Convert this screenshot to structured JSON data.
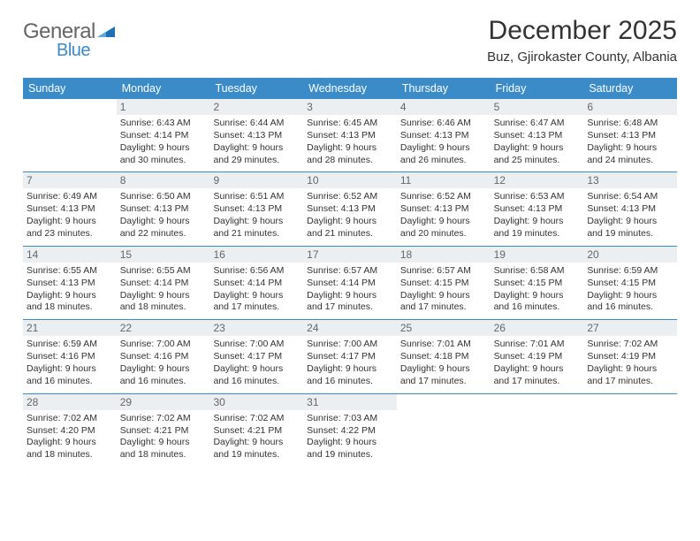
{
  "logo": {
    "part1": "General",
    "part2": "Blue"
  },
  "title": {
    "month": "December 2025",
    "location": "Buz, Gjirokaster County, Albania"
  },
  "colors": {
    "header_bg": "#3b8bc9",
    "header_fg": "#ffffff",
    "day_header_bg": "#eceff1",
    "day_header_fg": "#666666",
    "text": "#333333",
    "rule": "#3b8bc9",
    "page_bg": "#ffffff"
  },
  "week_header": [
    "Sunday",
    "Monday",
    "Tuesday",
    "Wednesday",
    "Thursday",
    "Friday",
    "Saturday"
  ],
  "days": [
    {
      "n": "",
      "sr": "",
      "ss": "",
      "dl": ""
    },
    {
      "n": "1",
      "sr": "6:43 AM",
      "ss": "4:14 PM",
      "dl": "9 hours and 30 minutes."
    },
    {
      "n": "2",
      "sr": "6:44 AM",
      "ss": "4:13 PM",
      "dl": "9 hours and 29 minutes."
    },
    {
      "n": "3",
      "sr": "6:45 AM",
      "ss": "4:13 PM",
      "dl": "9 hours and 28 minutes."
    },
    {
      "n": "4",
      "sr": "6:46 AM",
      "ss": "4:13 PM",
      "dl": "9 hours and 26 minutes."
    },
    {
      "n": "5",
      "sr": "6:47 AM",
      "ss": "4:13 PM",
      "dl": "9 hours and 25 minutes."
    },
    {
      "n": "6",
      "sr": "6:48 AM",
      "ss": "4:13 PM",
      "dl": "9 hours and 24 minutes."
    },
    {
      "n": "7",
      "sr": "6:49 AM",
      "ss": "4:13 PM",
      "dl": "9 hours and 23 minutes."
    },
    {
      "n": "8",
      "sr": "6:50 AM",
      "ss": "4:13 PM",
      "dl": "9 hours and 22 minutes."
    },
    {
      "n": "9",
      "sr": "6:51 AM",
      "ss": "4:13 PM",
      "dl": "9 hours and 21 minutes."
    },
    {
      "n": "10",
      "sr": "6:52 AM",
      "ss": "4:13 PM",
      "dl": "9 hours and 21 minutes."
    },
    {
      "n": "11",
      "sr": "6:52 AM",
      "ss": "4:13 PM",
      "dl": "9 hours and 20 minutes."
    },
    {
      "n": "12",
      "sr": "6:53 AM",
      "ss": "4:13 PM",
      "dl": "9 hours and 19 minutes."
    },
    {
      "n": "13",
      "sr": "6:54 AM",
      "ss": "4:13 PM",
      "dl": "9 hours and 19 minutes."
    },
    {
      "n": "14",
      "sr": "6:55 AM",
      "ss": "4:13 PM",
      "dl": "9 hours and 18 minutes."
    },
    {
      "n": "15",
      "sr": "6:55 AM",
      "ss": "4:14 PM",
      "dl": "9 hours and 18 minutes."
    },
    {
      "n": "16",
      "sr": "6:56 AM",
      "ss": "4:14 PM",
      "dl": "9 hours and 17 minutes."
    },
    {
      "n": "17",
      "sr": "6:57 AM",
      "ss": "4:14 PM",
      "dl": "9 hours and 17 minutes."
    },
    {
      "n": "18",
      "sr": "6:57 AM",
      "ss": "4:15 PM",
      "dl": "9 hours and 17 minutes."
    },
    {
      "n": "19",
      "sr": "6:58 AM",
      "ss": "4:15 PM",
      "dl": "9 hours and 16 minutes."
    },
    {
      "n": "20",
      "sr": "6:59 AM",
      "ss": "4:15 PM",
      "dl": "9 hours and 16 minutes."
    },
    {
      "n": "21",
      "sr": "6:59 AM",
      "ss": "4:16 PM",
      "dl": "9 hours and 16 minutes."
    },
    {
      "n": "22",
      "sr": "7:00 AM",
      "ss": "4:16 PM",
      "dl": "9 hours and 16 minutes."
    },
    {
      "n": "23",
      "sr": "7:00 AM",
      "ss": "4:17 PM",
      "dl": "9 hours and 16 minutes."
    },
    {
      "n": "24",
      "sr": "7:00 AM",
      "ss": "4:17 PM",
      "dl": "9 hours and 16 minutes."
    },
    {
      "n": "25",
      "sr": "7:01 AM",
      "ss": "4:18 PM",
      "dl": "9 hours and 17 minutes."
    },
    {
      "n": "26",
      "sr": "7:01 AM",
      "ss": "4:19 PM",
      "dl": "9 hours and 17 minutes."
    },
    {
      "n": "27",
      "sr": "7:02 AM",
      "ss": "4:19 PM",
      "dl": "9 hours and 17 minutes."
    },
    {
      "n": "28",
      "sr": "7:02 AM",
      "ss": "4:20 PM",
      "dl": "9 hours and 18 minutes."
    },
    {
      "n": "29",
      "sr": "7:02 AM",
      "ss": "4:21 PM",
      "dl": "9 hours and 18 minutes."
    },
    {
      "n": "30",
      "sr": "7:02 AM",
      "ss": "4:21 PM",
      "dl": "9 hours and 19 minutes."
    },
    {
      "n": "31",
      "sr": "7:03 AM",
      "ss": "4:22 PM",
      "dl": "9 hours and 19 minutes."
    },
    {
      "n": "",
      "sr": "",
      "ss": "",
      "dl": ""
    },
    {
      "n": "",
      "sr": "",
      "ss": "",
      "dl": ""
    },
    {
      "n": "",
      "sr": "",
      "ss": "",
      "dl": ""
    }
  ],
  "labels": {
    "sunrise": "Sunrise: ",
    "sunset": "Sunset: ",
    "daylight": "Daylight: "
  }
}
